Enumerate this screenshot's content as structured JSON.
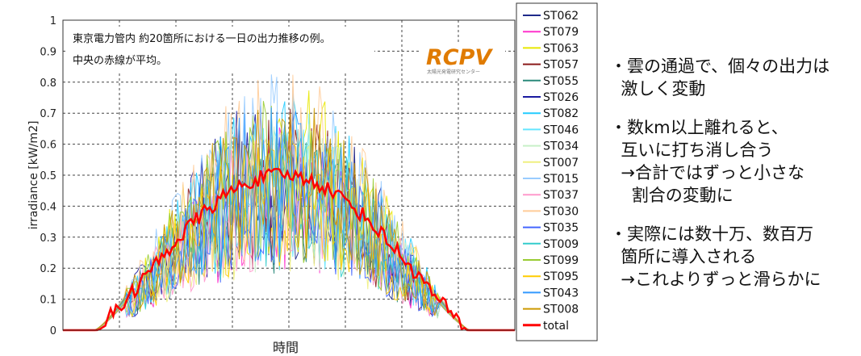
{
  "chart_data": {
    "type": "line",
    "title": "",
    "xlabel": "時間",
    "ylabel": "irradiance [kW/m2]",
    "ylim": [
      0,
      1
    ],
    "yticks": [
      "0",
      "0.1",
      "0.2",
      "0.3",
      "0.4",
      "0.5",
      "0.6",
      "0.7",
      "0.8",
      "0.9",
      "1"
    ],
    "grid": true,
    "legend_placement": "right",
    "annotation": [
      "東京電力管内 約20箇所における一日の出力推移の例。",
      "中央の赤線が平均。"
    ],
    "logo_text": "RCPV",
    "logo_subtext": "太陽光発電研究センター",
    "series": [
      {
        "name": "ST062",
        "color": "#1f2a8a"
      },
      {
        "name": "ST079",
        "color": "#ff33cc"
      },
      {
        "name": "ST063",
        "color": "#e8e800"
      },
      {
        "name": "ST057",
        "color": "#8b1a1a"
      },
      {
        "name": "ST055",
        "color": "#2a8a7a"
      },
      {
        "name": "ST026",
        "color": "#1a1aa0"
      },
      {
        "name": "ST082",
        "color": "#22ccff"
      },
      {
        "name": "ST046",
        "color": "#66e6ff"
      },
      {
        "name": "ST034",
        "color": "#c8f0c8"
      },
      {
        "name": "ST007",
        "color": "#f0f080"
      },
      {
        "name": "ST015",
        "color": "#99ccff"
      },
      {
        "name": "ST037",
        "color": "#ff99cc"
      },
      {
        "name": "ST030",
        "color": "#ffcc99"
      },
      {
        "name": "ST035",
        "color": "#4466ff"
      },
      {
        "name": "ST009",
        "color": "#33cccc"
      },
      {
        "name": "ST099",
        "color": "#99cc33"
      },
      {
        "name": "ST095",
        "color": "#ffcc00"
      },
      {
        "name": "ST043",
        "color": "#3399ff"
      },
      {
        "name": "ST008",
        "color": "#cc9900"
      },
      {
        "name": "total",
        "color": "#ff0000"
      }
    ]
  },
  "notes": [
    [
      "・雲の通過で、個々の出力は",
      "  激しく変動"
    ],
    [
      "・数km以上離れると、",
      "  互いに打ち消し合う",
      "  →合計ではずっと小さな",
      "    割合の変動に"
    ],
    [
      "・実際には数十万、数百万",
      "  箇所に導入される",
      "  →これよりずっと滑らかに"
    ]
  ]
}
